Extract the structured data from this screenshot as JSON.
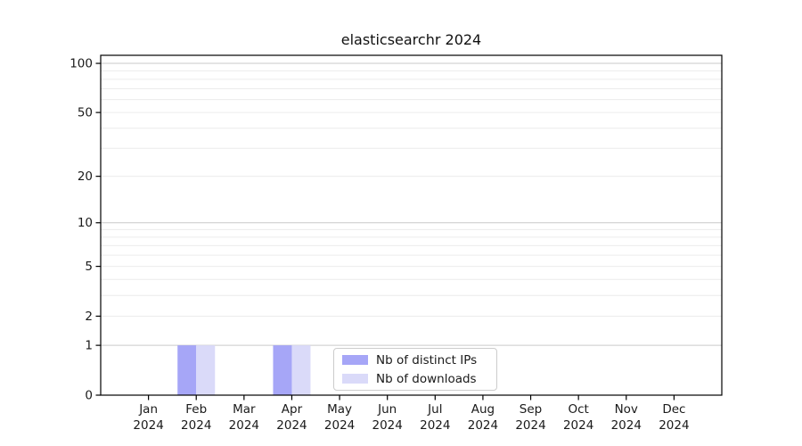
{
  "chart_data": {
    "type": "bar",
    "title": "elasticsearchr 2024",
    "x_categories": [
      "Jan",
      "Feb",
      "Mar",
      "Apr",
      "May",
      "Jun",
      "Jul",
      "Aug",
      "Sep",
      "Oct",
      "Nov",
      "Dec"
    ],
    "x_year": "2024",
    "series": [
      {
        "name": "Nb of distinct IPs",
        "color": "#a6a6f7",
        "values": [
          0,
          1,
          0,
          1,
          0,
          0,
          0,
          0,
          0,
          0,
          0,
          0
        ]
      },
      {
        "name": "Nb of downloads",
        "color": "#dadaf9",
        "values": [
          0,
          1,
          0,
          1,
          0,
          0,
          0,
          0,
          0,
          0,
          0,
          0
        ]
      }
    ],
    "y_ticks": [
      0,
      1,
      2,
      5,
      10,
      20,
      50,
      100
    ],
    "y_scale": "log10(1+y)",
    "y_max": 112,
    "grid": {
      "major_values": [
        1,
        10,
        100
      ],
      "minor_values": [
        2,
        3,
        4,
        5,
        6,
        7,
        8,
        9,
        20,
        30,
        40,
        50,
        60,
        70,
        80,
        90
      ]
    },
    "legend_position": "lower center"
  },
  "colors": {
    "background": "#ffffff",
    "axis": "#000000",
    "grid_major": "#c9c9c9",
    "grid_minor": "#ececec",
    "tick_text": "#1a1a1a",
    "legend_border": "#cccccc"
  }
}
